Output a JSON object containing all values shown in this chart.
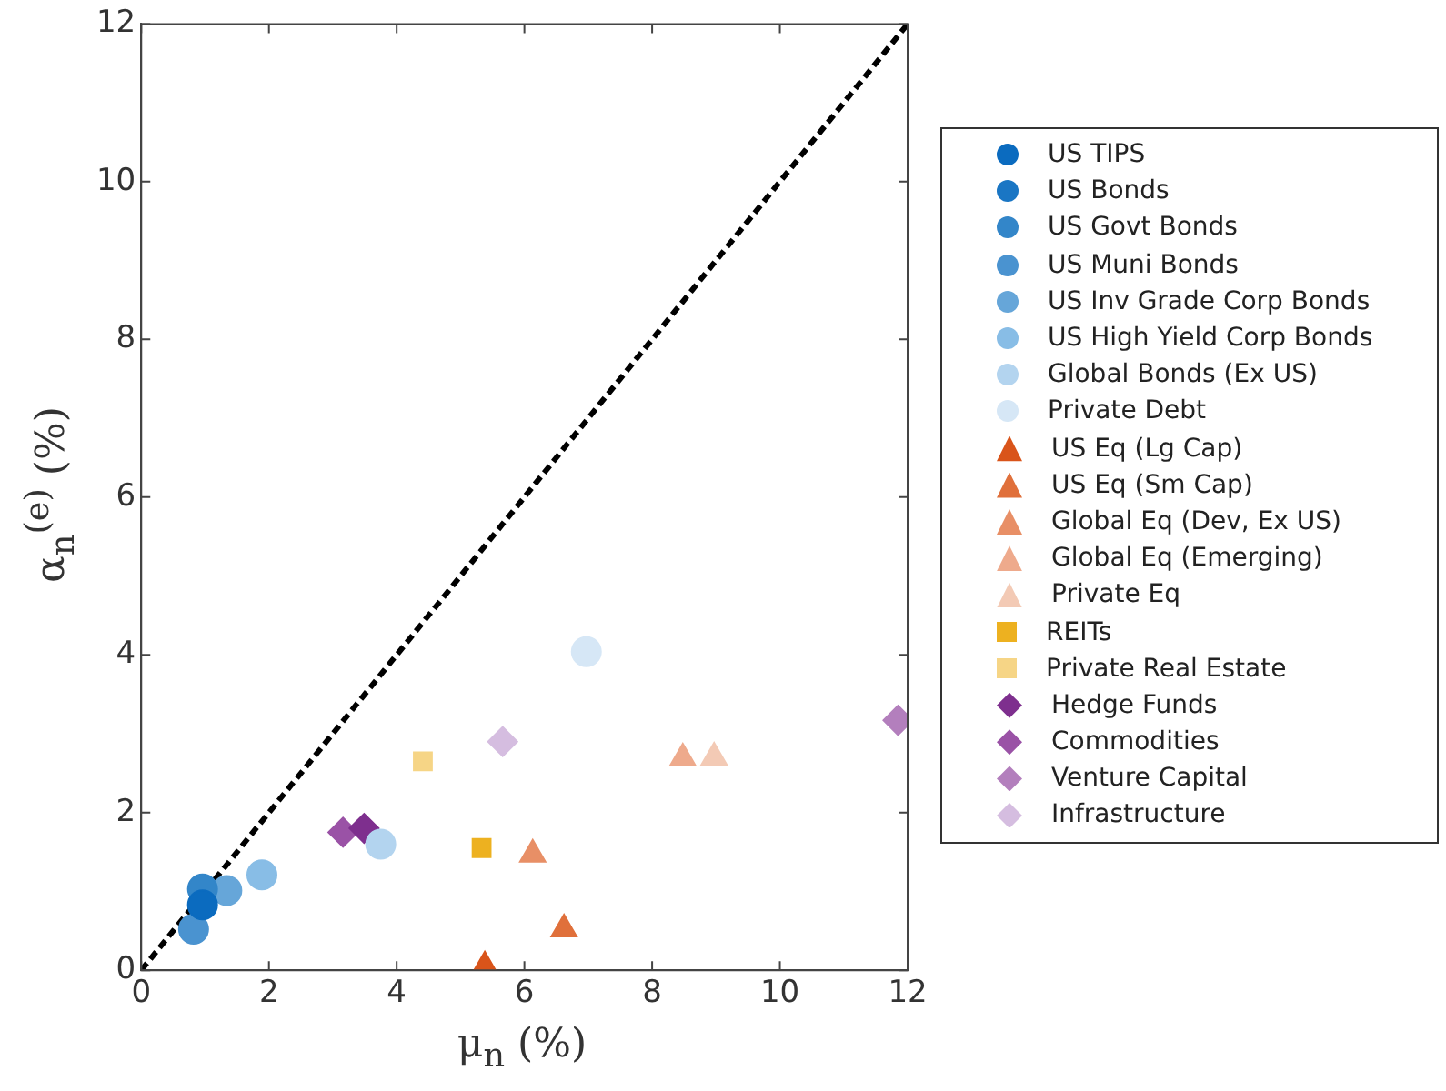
{
  "chart_data": {
    "type": "scatter",
    "xlabel": "μ$_{n}$ (%)",
    "ylabel": "α$_{n}$$^{(e)}$ (%)",
    "xlim": [
      0,
      12
    ],
    "ylim": [
      0,
      12
    ],
    "xticks": [
      0,
      2,
      4,
      6,
      8,
      10,
      12
    ],
    "yticks": [
      0,
      2,
      4,
      6,
      8,
      10,
      12
    ],
    "grid": false,
    "legend": "right",
    "series": [
      {
        "name": "US TIPS",
        "color": "#0b6bbf",
        "marker": "circle",
        "x": [
          0.96
        ],
        "values": [
          0.83
        ]
      },
      {
        "name": "US Bonds",
        "color": "#1a76c4",
        "marker": "circle",
        "x": [
          null
        ],
        "values": [
          null
        ]
      },
      {
        "name": "US Govt Bonds",
        "color": "#3386c9",
        "marker": "circle",
        "x": [
          0.96
        ],
        "values": [
          1.03
        ]
      },
      {
        "name": "US Muni Bonds",
        "color": "#4a93d0",
        "marker": "circle",
        "x": [
          0.82
        ],
        "values": [
          0.52
        ]
      },
      {
        "name": "US Inv Grade Corp Bonds",
        "color": "#66a6d9",
        "marker": "circle",
        "x": [
          1.34
        ],
        "values": [
          1.01
        ]
      },
      {
        "name": "US High Yield Corp Bonds",
        "color": "#88bde6",
        "marker": "circle",
        "x": [
          1.89
        ],
        "values": [
          1.21
        ]
      },
      {
        "name": "Global Bonds (Ex US)",
        "color": "#b3d4ef",
        "marker": "circle",
        "x": [
          3.75
        ],
        "values": [
          1.6
        ]
      },
      {
        "name": "Private Debt",
        "color": "#d6e7f6",
        "marker": "circle",
        "x": [
          6.97
        ],
        "values": [
          4.04
        ]
      },
      {
        "name": "US Eq (Lg Cap)",
        "color": "#d9541a",
        "marker": "triangle",
        "x": [
          5.38
        ],
        "values": [
          0.05
        ]
      },
      {
        "name": "US Eq (Sm Cap)",
        "color": "#e0703b",
        "marker": "triangle",
        "x": [
          6.62
        ],
        "values": [
          0.52
        ]
      },
      {
        "name": "Global Eq (Dev, Ex US)",
        "color": "#e88f66",
        "marker": "triangle",
        "x": [
          6.13
        ],
        "values": [
          1.47
        ]
      },
      {
        "name": "Global Eq (Emerging)",
        "color": "#eeaa8c",
        "marker": "triangle",
        "x": [
          8.48
        ],
        "values": [
          2.69
        ]
      },
      {
        "name": "Private Eq",
        "color": "#f3cab5",
        "marker": "triangle",
        "x": [
          8.97
        ],
        "values": [
          2.7
        ]
      },
      {
        "name": "REITs",
        "color": "#edb120",
        "marker": "square",
        "x": [
          5.33
        ],
        "values": [
          1.55
        ]
      },
      {
        "name": "Private Real Estate",
        "color": "#f6d586",
        "marker": "square",
        "x": [
          4.41
        ],
        "values": [
          2.65
        ]
      },
      {
        "name": "Hedge Funds",
        "color": "#7e2f8e",
        "marker": "diamond",
        "x": [
          3.49
        ],
        "values": [
          1.8
        ]
      },
      {
        "name": "Commodities",
        "color": "#9a52a6",
        "marker": "diamond",
        "x": [
          3.16
        ],
        "values": [
          1.75
        ]
      },
      {
        "name": "Venture Capital",
        "color": "#b37fbd",
        "marker": "diamond",
        "x": [
          11.85
        ],
        "values": [
          3.17
        ]
      },
      {
        "name": "Infrastructure",
        "color": "#d5bde0",
        "marker": "diamond",
        "x": [
          5.66
        ],
        "values": [
          2.9
        ]
      },
      {
        "type": "line",
        "color": "#000000",
        "marker": "none",
        "line_style": "dashed",
        "x": [
          0,
          12
        ],
        "values": [
          0,
          12
        ]
      }
    ]
  }
}
